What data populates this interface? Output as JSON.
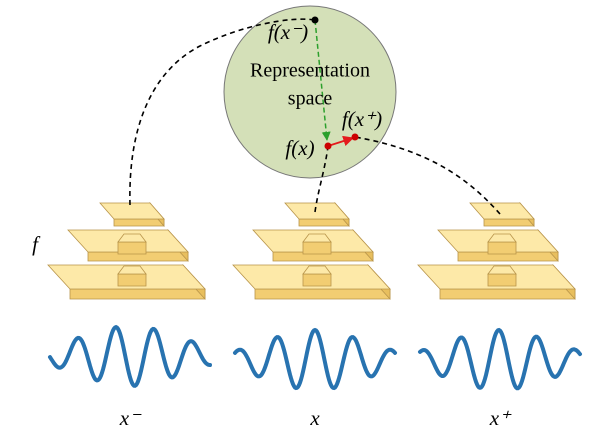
{
  "circle_label": [
    "Representation",
    "space"
  ],
  "embeddings": {
    "negative": "f(x⁻)",
    "anchor": "f(x)",
    "positive": "f(x⁺)"
  },
  "encoder_label": "f",
  "inputs": [
    "x⁻",
    "x",
    "x⁺"
  ]
}
